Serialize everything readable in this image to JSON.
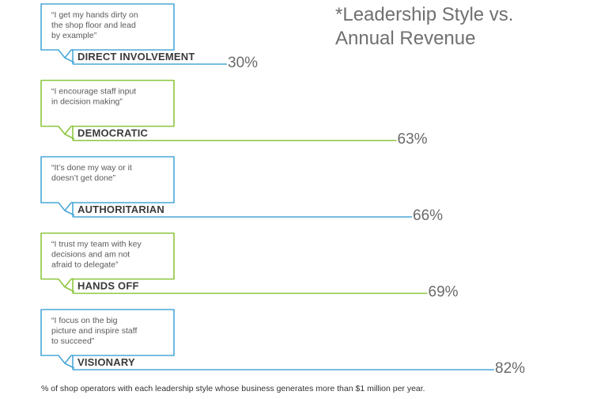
{
  "title_lines": [
    "*Leadership Style vs.",
    "Annual Revenue"
  ],
  "footnote": "% of shop operators with each leadership style whose business generates more than $1 million per year.",
  "colors": {
    "blue": "#4aa8d8",
    "green": "#8dc63f"
  },
  "chart_data": {
    "type": "bar",
    "orientation": "horizontal",
    "unit": "%",
    "xlim": [
      0,
      100
    ],
    "categories": [
      "DIRECT INVOLVEMENT",
      "DEMOCRATIC",
      "AUTHORITARIAN",
      "HANDS OFF",
      "VISIONARY"
    ],
    "values": [
      30,
      63,
      66,
      69,
      82
    ],
    "value_labels": [
      "30%",
      "63%",
      "66%",
      "69%",
      "82%"
    ],
    "quotes": [
      [
        "“I get my hands dirty on",
        "the shop floor and lead",
        "by example”"
      ],
      [
        "“I encourage staff input",
        "in decision making”"
      ],
      [
        "“It’s done my way or it",
        "doesn’t get done”"
      ],
      [
        "“I trust my team with key",
        "decisions and am not",
        "afraid to delegate”"
      ],
      [
        "“I focus on the big",
        "picture and inspire staff",
        "to succeed”"
      ]
    ],
    "bubble_colors": [
      "blue",
      "green",
      "blue",
      "green",
      "blue"
    ]
  }
}
